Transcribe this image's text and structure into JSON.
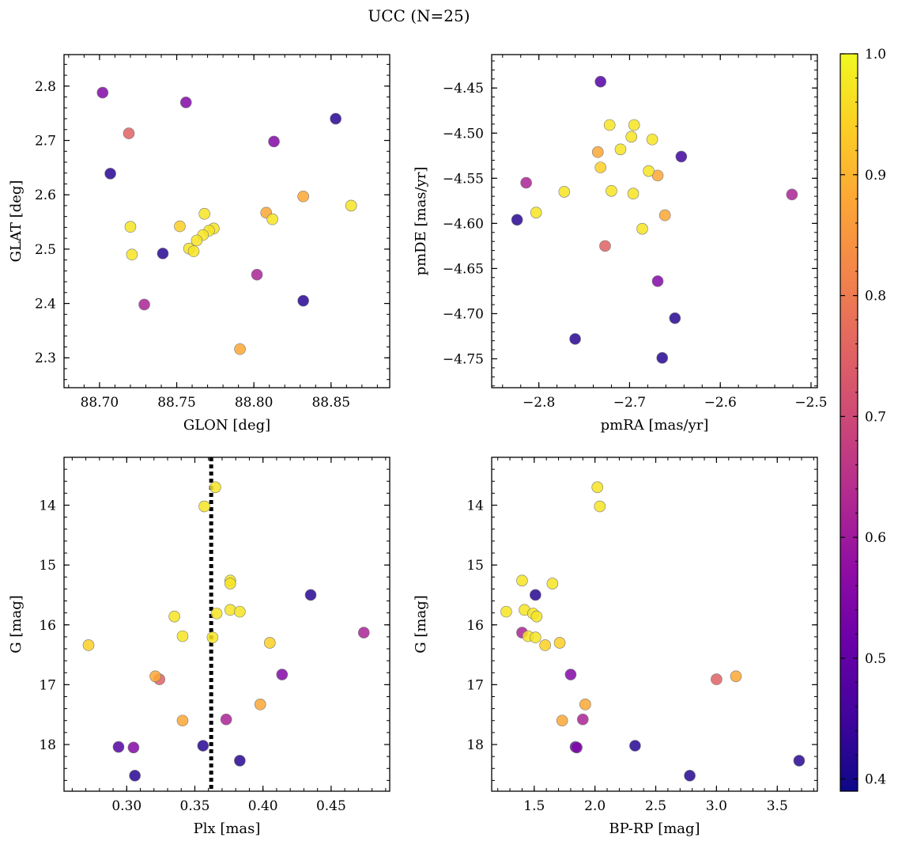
{
  "figure": {
    "title": "UCC (N=25)",
    "colormap": "plasma",
    "colorbar": {
      "range": [
        0.39,
        1.0
      ],
      "ticks": [
        "0.4",
        "0.5",
        "0.6",
        "0.7",
        "0.8",
        "0.9",
        "1.0"
      ]
    }
  },
  "chart_data": [
    {
      "type": "scatter",
      "xlabel": "GLON [deg]",
      "ylabel": "GLAT [deg]",
      "xlim": [
        88.677,
        88.888
      ],
      "ylim": [
        2.245,
        2.858
      ],
      "xticks": [
        "88.70",
        "88.75",
        "88.80",
        "88.85"
      ],
      "yticks": [
        "2.3",
        "2.4",
        "2.5",
        "2.6",
        "2.7",
        "2.8"
      ],
      "grid": false,
      "points": [
        {
          "x": 88.702,
          "y": 2.788,
          "c": 0.55
        },
        {
          "x": 88.756,
          "y": 2.77,
          "c": 0.55
        },
        {
          "x": 88.853,
          "y": 2.74,
          "c": 0.42
        },
        {
          "x": 88.719,
          "y": 2.713,
          "c": 0.75
        },
        {
          "x": 88.813,
          "y": 2.698,
          "c": 0.55
        },
        {
          "x": 88.707,
          "y": 2.639,
          "c": 0.42
        },
        {
          "x": 88.832,
          "y": 2.597,
          "c": 0.88
        },
        {
          "x": 88.863,
          "y": 2.58,
          "c": 0.97
        },
        {
          "x": 88.808,
          "y": 2.567,
          "c": 0.88
        },
        {
          "x": 88.768,
          "y": 2.565,
          "c": 0.97
        },
        {
          "x": 88.812,
          "y": 2.555,
          "c": 0.97
        },
        {
          "x": 88.72,
          "y": 2.541,
          "c": 0.97
        },
        {
          "x": 88.752,
          "y": 2.542,
          "c": 0.94
        },
        {
          "x": 88.774,
          "y": 2.538,
          "c": 0.97
        },
        {
          "x": 88.771,
          "y": 2.534,
          "c": 0.97
        },
        {
          "x": 88.767,
          "y": 2.526,
          "c": 0.97
        },
        {
          "x": 88.763,
          "y": 2.516,
          "c": 0.97
        },
        {
          "x": 88.758,
          "y": 2.501,
          "c": 0.97
        },
        {
          "x": 88.761,
          "y": 2.496,
          "c": 0.97
        },
        {
          "x": 88.721,
          "y": 2.49,
          "c": 0.97
        },
        {
          "x": 88.741,
          "y": 2.492,
          "c": 0.42
        },
        {
          "x": 88.802,
          "y": 2.453,
          "c": 0.62
        },
        {
          "x": 88.832,
          "y": 2.405,
          "c": 0.42
        },
        {
          "x": 88.729,
          "y": 2.398,
          "c": 0.62
        },
        {
          "x": 88.791,
          "y": 2.316,
          "c": 0.88
        }
      ]
    },
    {
      "type": "scatter",
      "xlabel": "pmRA [mas/yr]",
      "ylabel": "pmDE [mas/yr]",
      "xlim": [
        -2.852,
        -2.493
      ],
      "ylim": [
        -4.782,
        -4.413
      ],
      "xticks": [
        "−2.8",
        "−2.7",
        "−2.6",
        "−2.5"
      ],
      "yticks": [
        "−4.45",
        "−4.50",
        "−4.55",
        "−4.60",
        "−4.65",
        "−4.70",
        "−4.75"
      ],
      "grid": false,
      "points": [
        {
          "x": -2.732,
          "y": -4.443,
          "c": 0.48
        },
        {
          "x": -2.722,
          "y": -4.491,
          "c": 0.97
        },
        {
          "x": -2.695,
          "y": -4.491,
          "c": 0.97
        },
        {
          "x": -2.698,
          "y": -4.504,
          "c": 0.97
        },
        {
          "x": -2.675,
          "y": -4.507,
          "c": 0.97
        },
        {
          "x": -2.71,
          "y": -4.518,
          "c": 0.97
        },
        {
          "x": -2.735,
          "y": -4.521,
          "c": 0.88
        },
        {
          "x": -2.643,
          "y": -4.526,
          "c": 0.45
        },
        {
          "x": -2.732,
          "y": -4.538,
          "c": 0.94
        },
        {
          "x": -2.679,
          "y": -4.542,
          "c": 0.97
        },
        {
          "x": -2.669,
          "y": -4.547,
          "c": 0.88
        },
        {
          "x": -2.814,
          "y": -4.555,
          "c": 0.62
        },
        {
          "x": -2.772,
          "y": -4.565,
          "c": 0.97
        },
        {
          "x": -2.72,
          "y": -4.564,
          "c": 0.97
        },
        {
          "x": -2.696,
          "y": -4.567,
          "c": 0.97
        },
        {
          "x": -2.521,
          "y": -4.568,
          "c": 0.62
        },
        {
          "x": -2.661,
          "y": -4.591,
          "c": 0.88
        },
        {
          "x": -2.803,
          "y": -4.588,
          "c": 0.97
        },
        {
          "x": -2.824,
          "y": -4.596,
          "c": 0.42
        },
        {
          "x": -2.686,
          "y": -4.606,
          "c": 0.97
        },
        {
          "x": -2.727,
          "y": -4.625,
          "c": 0.75
        },
        {
          "x": -2.669,
          "y": -4.664,
          "c": 0.55
        },
        {
          "x": -2.65,
          "y": -4.705,
          "c": 0.42
        },
        {
          "x": -2.76,
          "y": -4.728,
          "c": 0.42
        },
        {
          "x": -2.664,
          "y": -4.749,
          "c": 0.42
        }
      ]
    },
    {
      "type": "scatter",
      "xlabel": "Plx [mas]",
      "ylabel": "G [mag]",
      "xlim": [
        0.254,
        0.493
      ],
      "ylim": [
        18.78,
        13.2
      ],
      "y_inverted": true,
      "xticks": [
        "0.30",
        "0.35",
        "0.40",
        "0.45"
      ],
      "yticks": [
        "14",
        "15",
        "16",
        "17",
        "18"
      ],
      "grid": false,
      "vline": {
        "x": 0.362,
        "style": "dotted"
      },
      "points": [
        {
          "x": 0.365,
          "y": 13.7,
          "c": 0.97
        },
        {
          "x": 0.357,
          "y": 14.02,
          "c": 0.97
        },
        {
          "x": 0.376,
          "y": 15.26,
          "c": 0.97
        },
        {
          "x": 0.376,
          "y": 15.31,
          "c": 0.97
        },
        {
          "x": 0.435,
          "y": 15.5,
          "c": 0.42
        },
        {
          "x": 0.376,
          "y": 15.75,
          "c": 0.97
        },
        {
          "x": 0.383,
          "y": 15.78,
          "c": 0.97
        },
        {
          "x": 0.366,
          "y": 15.81,
          "c": 0.97
        },
        {
          "x": 0.335,
          "y": 15.86,
          "c": 0.97
        },
        {
          "x": 0.474,
          "y": 16.13,
          "c": 0.62
        },
        {
          "x": 0.341,
          "y": 16.19,
          "c": 0.97
        },
        {
          "x": 0.363,
          "y": 16.21,
          "c": 0.97
        },
        {
          "x": 0.405,
          "y": 16.3,
          "c": 0.94
        },
        {
          "x": 0.272,
          "y": 16.34,
          "c": 0.94
        },
        {
          "x": 0.414,
          "y": 16.83,
          "c": 0.55
        },
        {
          "x": 0.321,
          "y": 16.86,
          "c": 0.88
        },
        {
          "x": 0.324,
          "y": 16.91,
          "c": 0.75
        },
        {
          "x": 0.398,
          "y": 17.33,
          "c": 0.88
        },
        {
          "x": 0.373,
          "y": 17.58,
          "c": 0.62
        },
        {
          "x": 0.341,
          "y": 17.6,
          "c": 0.88
        },
        {
          "x": 0.356,
          "y": 18.02,
          "c": 0.42
        },
        {
          "x": 0.294,
          "y": 18.04,
          "c": 0.48
        },
        {
          "x": 0.305,
          "y": 18.05,
          "c": 0.55
        },
        {
          "x": 0.383,
          "y": 18.27,
          "c": 0.42
        },
        {
          "x": 0.306,
          "y": 18.52,
          "c": 0.42
        }
      ]
    },
    {
      "type": "scatter",
      "xlabel": "BP-RP [mag]",
      "ylabel": "G [mag]",
      "xlim": [
        1.15,
        3.83
      ],
      "ylim": [
        18.78,
        13.2
      ],
      "y_inverted": true,
      "xticks": [
        "1.5",
        "2.0",
        "2.5",
        "3.0",
        "3.5"
      ],
      "yticks": [
        "14",
        "15",
        "16",
        "17",
        "18"
      ],
      "grid": false,
      "points": [
        {
          "x": 2.02,
          "y": 13.7,
          "c": 0.97
        },
        {
          "x": 2.04,
          "y": 14.02,
          "c": 0.97
        },
        {
          "x": 1.4,
          "y": 15.26,
          "c": 0.97
        },
        {
          "x": 1.65,
          "y": 15.31,
          "c": 0.97
        },
        {
          "x": 1.51,
          "y": 15.5,
          "c": 0.42
        },
        {
          "x": 1.42,
          "y": 15.75,
          "c": 0.97
        },
        {
          "x": 1.27,
          "y": 15.78,
          "c": 0.97
        },
        {
          "x": 1.49,
          "y": 15.81,
          "c": 0.97
        },
        {
          "x": 1.52,
          "y": 15.86,
          "c": 0.97
        },
        {
          "x": 1.4,
          "y": 16.13,
          "c": 0.62
        },
        {
          "x": 1.45,
          "y": 16.19,
          "c": 0.97
        },
        {
          "x": 1.51,
          "y": 16.21,
          "c": 0.97
        },
        {
          "x": 1.71,
          "y": 16.3,
          "c": 0.94
        },
        {
          "x": 1.59,
          "y": 16.34,
          "c": 0.94
        },
        {
          "x": 1.8,
          "y": 16.83,
          "c": 0.55
        },
        {
          "x": 3.16,
          "y": 16.86,
          "c": 0.88
        },
        {
          "x": 3.0,
          "y": 16.91,
          "c": 0.75
        },
        {
          "x": 1.92,
          "y": 17.33,
          "c": 0.88
        },
        {
          "x": 1.9,
          "y": 17.58,
          "c": 0.62
        },
        {
          "x": 1.73,
          "y": 17.6,
          "c": 0.88
        },
        {
          "x": 2.33,
          "y": 18.02,
          "c": 0.42
        },
        {
          "x": 1.84,
          "y": 18.04,
          "c": 0.48
        },
        {
          "x": 1.85,
          "y": 18.05,
          "c": 0.55
        },
        {
          "x": 3.68,
          "y": 18.27,
          "c": 0.42
        },
        {
          "x": 2.78,
          "y": 18.52,
          "c": 0.42
        }
      ]
    }
  ]
}
